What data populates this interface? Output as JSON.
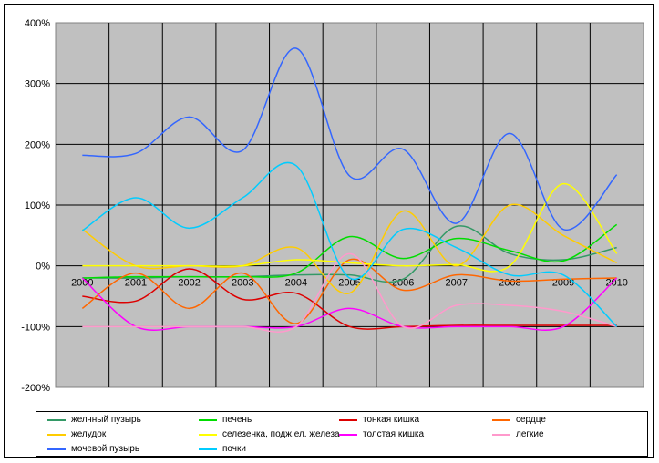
{
  "chart_data": {
    "type": "line",
    "categories": [
      "2000",
      "2001",
      "2002",
      "2003",
      "2004",
      "2005",
      "2006",
      "2007",
      "2008",
      "2009",
      "2010"
    ],
    "y_ticks": [
      "400%",
      "300%",
      "200%",
      "100%",
      "0%",
      "-100%",
      "-200%"
    ],
    "ylim": [
      -200,
      400
    ],
    "y_step": 100,
    "grid": true,
    "legend_position": "bottom",
    "series": [
      {
        "name": "желчный пузырь",
        "color": "#339966",
        "values": [
          -20,
          -20,
          -18,
          -18,
          -15,
          -15,
          -22,
          65,
          20,
          10,
          30
        ]
      },
      {
        "name": "печень",
        "color": "#00dd00",
        "values": [
          -20,
          -18,
          -18,
          -18,
          -12,
          48,
          12,
          45,
          25,
          8,
          68
        ]
      },
      {
        "name": "тонкая кишка",
        "color": "#dd0000",
        "values": [
          -50,
          -58,
          -5,
          -55,
          -45,
          -100,
          -100,
          -98,
          -98,
          -98,
          -98
        ]
      },
      {
        "name": "сердце",
        "color": "#ff6600",
        "values": [
          -70,
          -12,
          -70,
          -12,
          -95,
          10,
          -40,
          -15,
          -25,
          -22,
          -20
        ]
      },
      {
        "name": "желудок",
        "color": "#ffcc00",
        "values": [
          60,
          0,
          0,
          0,
          30,
          -45,
          90,
          0,
          100,
          50,
          5
        ]
      },
      {
        "name": "селезенка, подж.ел. железа",
        "color": "#ffff00",
        "values": [
          0,
          0,
          0,
          0,
          10,
          5,
          0,
          2,
          0,
          135,
          20
        ]
      },
      {
        "name": "толстая кишка",
        "color": "#ff00ff",
        "values": [
          -20,
          -100,
          -100,
          -100,
          -100,
          -70,
          -100,
          -100,
          -100,
          -100,
          -20
        ]
      },
      {
        "name": "легкие",
        "color": "#ff99cc",
        "values": [
          -100,
          -100,
          -100,
          -100,
          -100,
          20,
          -100,
          -65,
          -65,
          -75,
          -100
        ]
      },
      {
        "name": "мочевой пузырь",
        "color": "#3366ff",
        "values": [
          182,
          185,
          245,
          190,
          358,
          148,
          192,
          70,
          218,
          60,
          150
        ]
      },
      {
        "name": "почки",
        "color": "#00ccff",
        "values": [
          58,
          112,
          62,
          112,
          165,
          -20,
          60,
          30,
          -15,
          -15,
          -100
        ]
      }
    ]
  }
}
